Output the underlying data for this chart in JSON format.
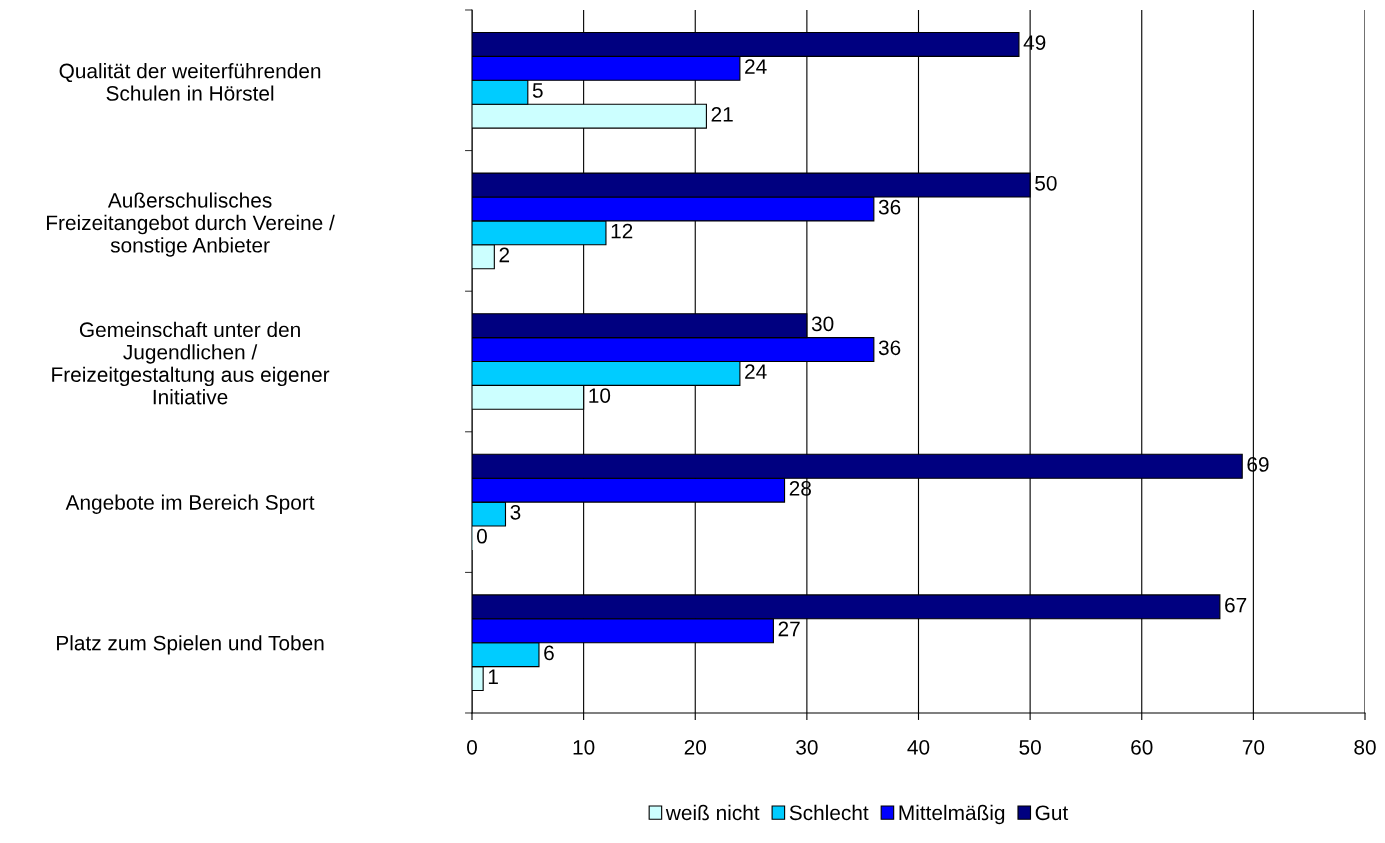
{
  "chart_data": {
    "type": "bar",
    "orientation": "horizontal",
    "categories": [
      "Qualität der weiterführenden\nSchulen in Hörstel",
      "Außerschulisches\nFreizeitangebot durch Vereine /\nsonstige Anbieter",
      "Gemeinschaft unter den\nJugendlichen /\nFreizeitgestaltung aus eigener\nInitiative",
      "Angebote im Bereich Sport",
      "Platz zum Spielen und Toben"
    ],
    "series": [
      {
        "name": "weiß nicht",
        "color": "#ccffff",
        "values": [
          21,
          2,
          10,
          0,
          1
        ]
      },
      {
        "name": "Schlecht",
        "color": "#00ccff",
        "values": [
          5,
          12,
          24,
          3,
          6
        ]
      },
      {
        "name": "Mittelmäßig",
        "color": "#0000ff",
        "values": [
          24,
          36,
          36,
          28,
          27
        ]
      },
      {
        "name": "Gut",
        "color": "#000080",
        "values": [
          49,
          50,
          30,
          69,
          67
        ]
      }
    ],
    "xlim": [
      0,
      80
    ],
    "xticks": [
      0,
      10,
      20,
      30,
      40,
      50,
      60,
      70,
      80
    ],
    "grid": "x",
    "legend": "bottom",
    "data_labels": true
  }
}
